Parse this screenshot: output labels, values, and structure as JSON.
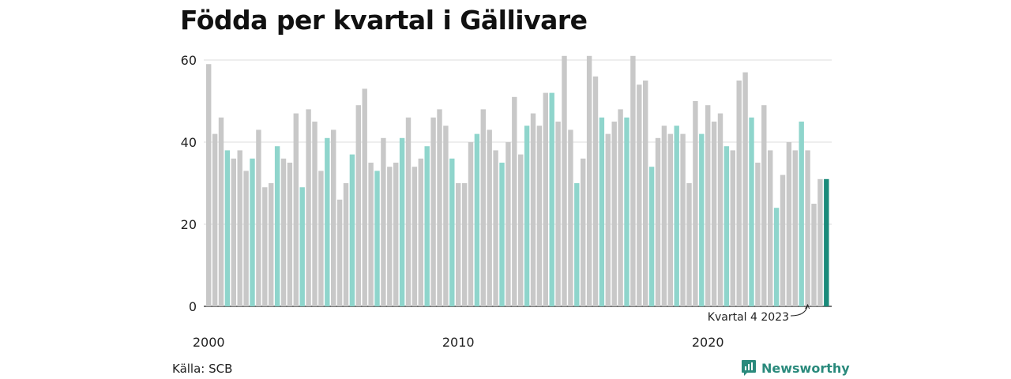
{
  "title": "Födda per kvartal i Gällivare",
  "source": "Källa: SCB",
  "brand": "Newsworthy",
  "colors": {
    "default": "#c8c8c8",
    "q4": "#8fd5cc",
    "latest": "#1a8a7a",
    "grid": "#dddddd",
    "brand": "#2a8a7c"
  },
  "chart_data": {
    "type": "bar",
    "title": "Födda per kvartal i Gällivare",
    "xlabel": "",
    "ylabel": "",
    "ylim": [
      0,
      60
    ],
    "yticks": [
      0,
      20,
      40,
      60
    ],
    "xticks": [
      "2000",
      "2010",
      "2020"
    ],
    "grid": true,
    "start_year": 2000,
    "values": [
      59,
      42,
      46,
      38,
      36,
      38,
      33,
      36,
      43,
      29,
      30,
      39,
      36,
      35,
      47,
      29,
      48,
      45,
      33,
      41,
      43,
      26,
      30,
      37,
      49,
      53,
      35,
      33,
      41,
      34,
      35,
      41,
      46,
      34,
      36,
      39,
      46,
      48,
      44,
      36,
      30,
      30,
      40,
      42,
      48,
      43,
      38,
      35,
      40,
      51,
      37,
      44,
      47,
      44,
      52,
      52,
      45,
      61,
      43,
      30,
      36,
      61,
      56,
      46,
      42,
      45,
      48,
      46,
      61,
      54,
      55,
      34,
      41,
      44,
      42,
      44,
      42,
      30,
      50,
      42,
      49,
      45,
      47,
      39,
      38,
      55,
      57,
      46,
      35,
      49,
      38,
      24,
      32,
      40,
      38,
      45,
      38,
      25,
      31,
      31
    ],
    "annotation": "Kvartal 4 2023"
  }
}
